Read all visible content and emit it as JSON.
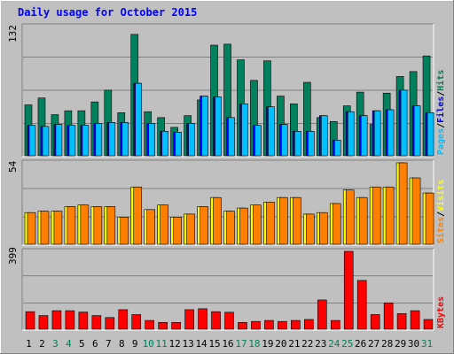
{
  "chart_data": {
    "type": "bar",
    "title": "Daily usage for October 2015",
    "categories": [
      "1",
      "2",
      "3",
      "4",
      "5",
      "6",
      "7",
      "8",
      "9",
      "10",
      "11",
      "12",
      "13",
      "14",
      "15",
      "16",
      "17",
      "18",
      "19",
      "20",
      "21",
      "22",
      "23",
      "24",
      "25",
      "26",
      "27",
      "28",
      "29",
      "30",
      "31"
    ],
    "weekend_days": [
      "3",
      "4",
      "10",
      "11",
      "17",
      "18",
      "24",
      "25",
      "31"
    ],
    "panels": {
      "top": {
        "ymax_label": "132",
        "ymax": 132,
        "axis_label_parts": [
          "Pages",
          "/",
          "Files",
          "/",
          "Hits"
        ],
        "series": [
          {
            "name": "Hits",
            "color": "#00805C",
            "values": [
              52,
              59,
              42,
              46,
              46,
              55,
              67,
              44,
              124,
              45,
              39,
              29,
              41,
              57,
              113,
              114,
              98,
              77,
              97,
              61,
              53,
              75,
              39,
              35,
              51,
              65,
              32,
              64,
              81,
              86,
              102
            ]
          },
          {
            "name": "Files",
            "color": "#0000FF",
            "values": [
              31,
              30,
              32,
              31,
              31,
              33,
              34,
              34,
              74,
              33,
              25,
              24,
              33,
              61,
              60,
              39,
              53,
              31,
              50,
              32,
              25,
              25,
              41,
              16,
              45,
              41,
              46,
              47,
              67,
              51,
              44
            ]
          },
          {
            "name": "Pages",
            "color": "#00BFFF",
            "values": [
              31,
              30,
              32,
              31,
              31,
              33,
              34,
              34,
              74,
              33,
              25,
              24,
              33,
              61,
              60,
              39,
              53,
              31,
              50,
              32,
              25,
              25,
              41,
              16,
              45,
              41,
              46,
              47,
              67,
              51,
              44
            ]
          }
        ]
      },
      "middle": {
        "ymax_label": "54",
        "ymax": 54,
        "axis_label_parts": [
          "Sites",
          "/",
          "Visits"
        ],
        "series": [
          {
            "name": "Visits",
            "color": "#FFFF00",
            "values": [
              21,
              22,
              22,
              25,
              26,
              25,
              25,
              18,
              38,
              23,
              26,
              18,
              20,
              25,
              31,
              22,
              24,
              26,
              28,
              31,
              31,
              20,
              21,
              27,
              36,
              31,
              38,
              38,
              54,
              44,
              34
            ]
          },
          {
            "name": "Sites",
            "color": "#FF8000",
            "values": [
              21,
              22,
              22,
              25,
              26,
              25,
              25,
              18,
              38,
              23,
              26,
              18,
              20,
              25,
              31,
              22,
              24,
              26,
              28,
              31,
              31,
              20,
              21,
              27,
              36,
              31,
              38,
              38,
              54,
              44,
              34
            ]
          }
        ]
      },
      "bottom": {
        "ymax_label": "399",
        "ymax": 399,
        "axis_label_parts": [
          "KBytes"
        ],
        "series": [
          {
            "name": "KBytes",
            "color": "#FF0000",
            "values": [
              90,
              70,
              95,
              95,
              88,
              70,
              60,
              100,
              75,
              45,
              35,
              35,
              100,
              105,
              90,
              87,
              35,
              40,
              45,
              40,
              45,
              50,
              150,
              45,
              399,
              250,
              75,
              135,
              80,
              95,
              50
            ]
          }
        ]
      }
    }
  }
}
